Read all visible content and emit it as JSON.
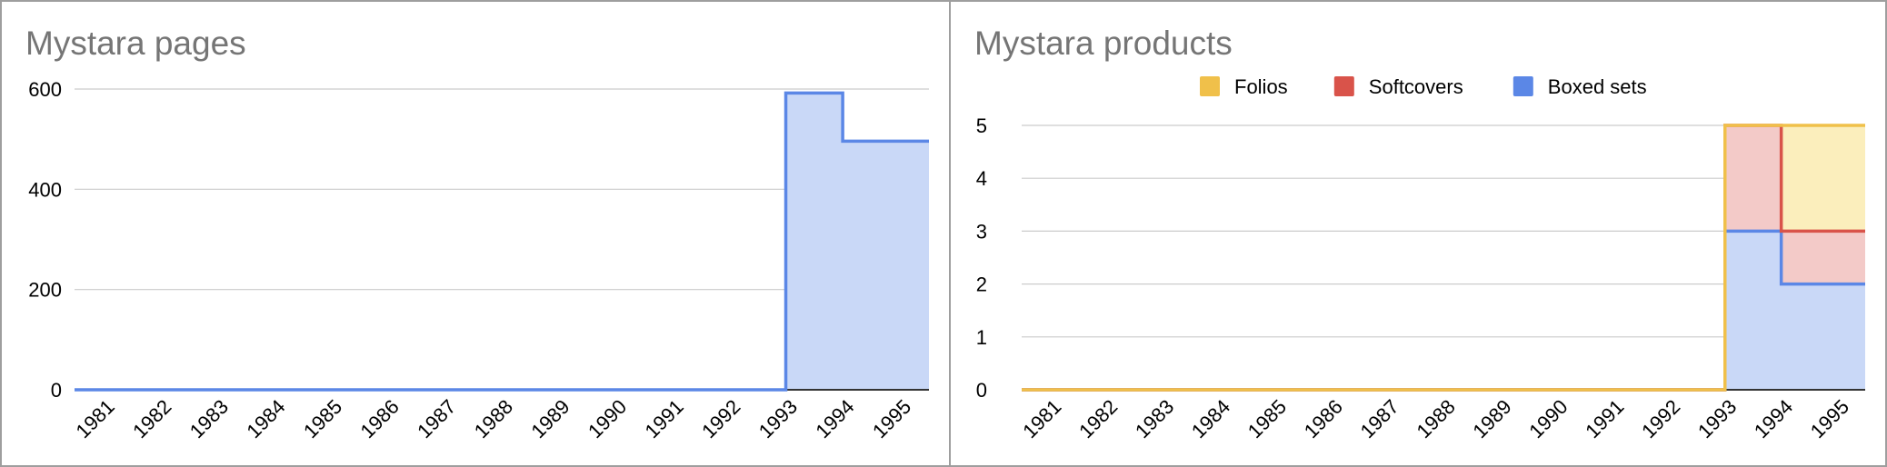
{
  "charts": [
    {
      "id": "pages",
      "chart_data": {
        "type": "area",
        "step": true,
        "title": "Mystara pages",
        "xlabel": "",
        "ylabel": "",
        "categories": [
          "1981",
          "1982",
          "1983",
          "1984",
          "1985",
          "1986",
          "1987",
          "1988",
          "1989",
          "1990",
          "1991",
          "1992",
          "1993",
          "1994",
          "1995"
        ],
        "series": [
          {
            "values": [
              0,
              0,
              0,
              0,
              0,
              0,
              0,
              0,
              0,
              0,
              0,
              0,
              0,
              592,
              496
            ],
            "color": "#5b87e6",
            "fill": "#c9d8f7"
          }
        ],
        "ylim": [
          0,
          600
        ],
        "yticks": [
          0,
          200,
          400,
          600
        ],
        "grid": true,
        "legend": "none"
      }
    },
    {
      "id": "products",
      "chart_data": {
        "type": "area",
        "step": true,
        "stacked": true,
        "title": "Mystara products",
        "xlabel": "",
        "ylabel": "",
        "categories": [
          "1981",
          "1982",
          "1983",
          "1984",
          "1985",
          "1986",
          "1987",
          "1988",
          "1989",
          "1990",
          "1991",
          "1992",
          "1993",
          "1994",
          "1995"
        ],
        "series": [
          {
            "name": "Folios",
            "values": [
              0,
              0,
              0,
              0,
              0,
              0,
              0,
              0,
              0,
              0,
              0,
              0,
              0,
              0,
              2
            ],
            "color": "#f0c04a",
            "fill": "#fbeebc"
          },
          {
            "name": "Softcovers",
            "values": [
              0,
              0,
              0,
              0,
              0,
              0,
              0,
              0,
              0,
              0,
              0,
              0,
              0,
              2,
              1
            ],
            "color": "#d9534a",
            "fill": "#f3cac8"
          },
          {
            "name": "Boxed sets",
            "values": [
              0,
              0,
              0,
              0,
              0,
              0,
              0,
              0,
              0,
              0,
              0,
              0,
              0,
              3,
              2
            ],
            "color": "#5b87e6",
            "fill": "#c9d8f7"
          }
        ],
        "ylim": [
          0,
          5
        ],
        "yticks": [
          0,
          1,
          2,
          3,
          4,
          5
        ],
        "grid": true,
        "legend": "top"
      }
    }
  ]
}
